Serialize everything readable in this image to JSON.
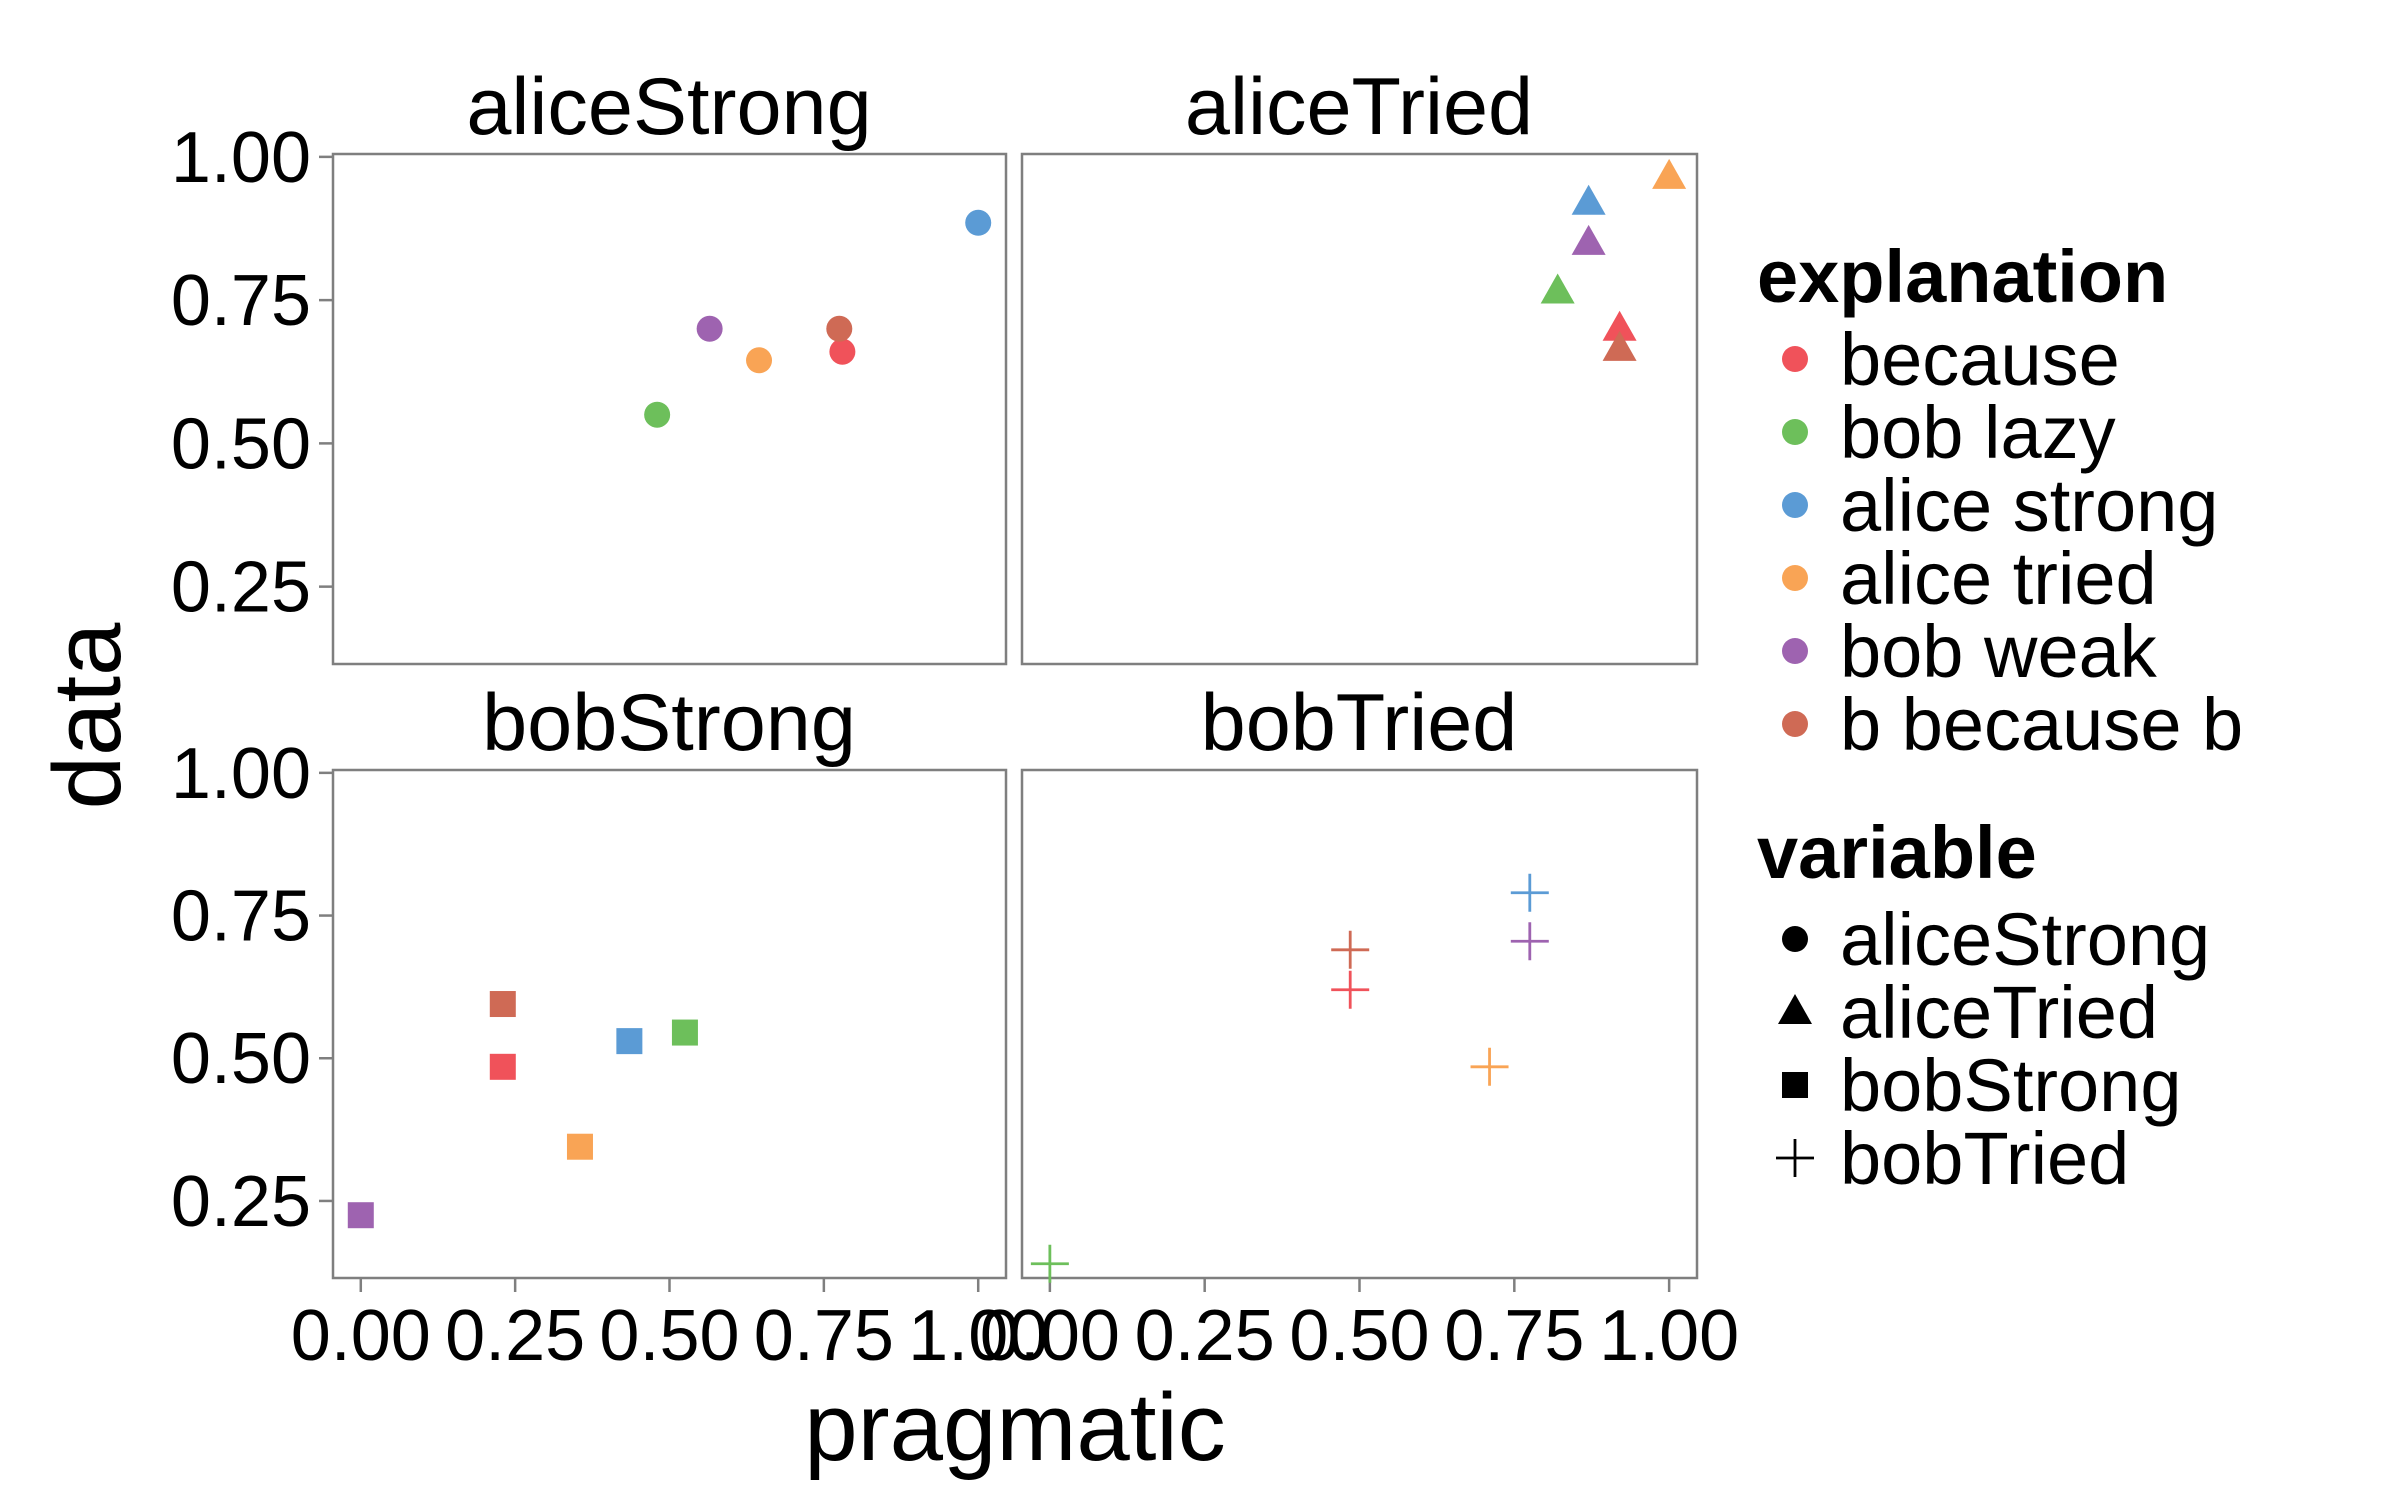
{
  "chart_data": {
    "type": "scatter",
    "facets": [
      "aliceStrong",
      "aliceTried",
      "bobStrong",
      "bobTried"
    ],
    "xlabel": "pragmatic",
    "ylabel": "data",
    "x_ticks": [
      "0.00",
      "0.25",
      "0.50",
      "0.75",
      "1.00"
    ],
    "y_ticks": [
      "0.25",
      "0.50",
      "0.75",
      "1.00"
    ],
    "xlim": [
      -0.045,
      1.045
    ],
    "ylim": [
      0.115,
      1.005
    ],
    "legend_position": "right",
    "legend_explanation": {
      "title": "explanation",
      "entries": [
        {
          "label": "because",
          "color": "#F0525A"
        },
        {
          "label": "bob lazy",
          "color": "#6DBF5B"
        },
        {
          "label": "alice strong",
          "color": "#5B9BD5"
        },
        {
          "label": "alice tried",
          "color": "#F9A455"
        },
        {
          "label": "bob weak",
          "color": "#9E63B0"
        },
        {
          "label": "b because b",
          "color": "#CF6A55"
        }
      ]
    },
    "legend_variable": {
      "title": "variable",
      "entries": [
        {
          "label": "aliceStrong",
          "shape": "circle"
        },
        {
          "label": "aliceTried",
          "shape": "triangle"
        },
        {
          "label": "bobStrong",
          "shape": "square"
        },
        {
          "label": "bobTried",
          "shape": "plus"
        }
      ]
    },
    "points": [
      {
        "facet": "aliceStrong",
        "explanation": "because",
        "x": 0.78,
        "y": 0.66
      },
      {
        "facet": "aliceStrong",
        "explanation": "bob lazy",
        "x": 0.48,
        "y": 0.55
      },
      {
        "facet": "aliceStrong",
        "explanation": "alice strong",
        "x": 1.0,
        "y": 0.885
      },
      {
        "facet": "aliceStrong",
        "explanation": "alice tried",
        "x": 0.645,
        "y": 0.645
      },
      {
        "facet": "aliceStrong",
        "explanation": "bob weak",
        "x": 0.565,
        "y": 0.7
      },
      {
        "facet": "aliceStrong",
        "explanation": "b because b",
        "x": 0.775,
        "y": 0.7
      },
      {
        "facet": "aliceTried",
        "explanation": "because",
        "x": 0.92,
        "y": 0.7
      },
      {
        "facet": "aliceTried",
        "explanation": "bob lazy",
        "x": 0.82,
        "y": 0.765
      },
      {
        "facet": "aliceTried",
        "explanation": "alice strong",
        "x": 0.87,
        "y": 0.92
      },
      {
        "facet": "aliceTried",
        "explanation": "alice tried",
        "x": 1.0,
        "y": 0.965
      },
      {
        "facet": "aliceTried",
        "explanation": "bob weak",
        "x": 0.87,
        "y": 0.85
      },
      {
        "facet": "aliceTried",
        "explanation": "b because b",
        "x": 0.92,
        "y": 0.665
      },
      {
        "facet": "bobStrong",
        "explanation": "because",
        "x": 0.23,
        "y": 0.485
      },
      {
        "facet": "bobStrong",
        "explanation": "bob lazy",
        "x": 0.525,
        "y": 0.545
      },
      {
        "facet": "bobStrong",
        "explanation": "alice strong",
        "x": 0.435,
        "y": 0.53
      },
      {
        "facet": "bobStrong",
        "explanation": "alice tried",
        "x": 0.355,
        "y": 0.345
      },
      {
        "facet": "bobStrong",
        "explanation": "bob weak",
        "x": 0.0,
        "y": 0.225
      },
      {
        "facet": "bobStrong",
        "explanation": "b because b",
        "x": 0.23,
        "y": 0.595
      },
      {
        "facet": "bobTried",
        "explanation": "because",
        "x": 0.485,
        "y": 0.62
      },
      {
        "facet": "bobTried",
        "explanation": "bob lazy",
        "x": 0.0,
        "y": 0.14
      },
      {
        "facet": "bobTried",
        "explanation": "alice strong",
        "x": 0.775,
        "y": 0.79
      },
      {
        "facet": "bobTried",
        "explanation": "alice tried",
        "x": 0.71,
        "y": 0.485
      },
      {
        "facet": "bobTried",
        "explanation": "bob weak",
        "x": 0.775,
        "y": 0.705
      },
      {
        "facet": "bobTried",
        "explanation": "b because b",
        "x": 0.485,
        "y": 0.69
      }
    ]
  }
}
